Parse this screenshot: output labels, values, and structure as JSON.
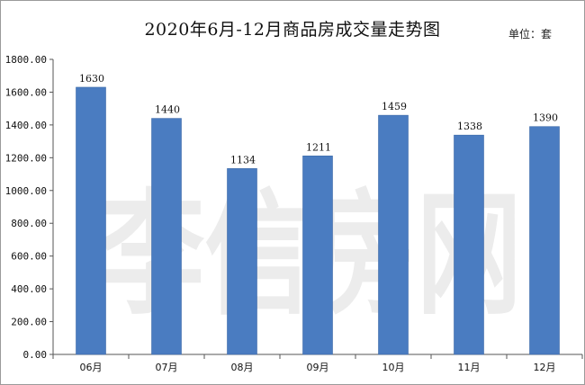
{
  "header": {
    "title": "2020年6月-12月商品房成交量走势图",
    "unit": "单位：套"
  },
  "watermark": "李信房网",
  "colors": {
    "bar": "#4a7cc1",
    "bar_edge": "#3d6aa8",
    "axis": "#555555"
  },
  "chart_data": {
    "type": "bar",
    "title": "2020年6月-12月商品房成交量走势图",
    "xlabel": "",
    "ylabel": "",
    "categories": [
      "06月",
      "07月",
      "08月",
      "09月",
      "10月",
      "11月",
      "12月"
    ],
    "values": [
      1630,
      1440,
      1134,
      1211,
      1459,
      1338,
      1390
    ],
    "ylim": [
      0,
      1800
    ],
    "yticks": [
      "0.00",
      "200.00",
      "400.00",
      "600.00",
      "800.00",
      "1000.00",
      "1200.00",
      "1400.00",
      "1600.00",
      "1800.00"
    ],
    "data_labels": [
      "1630",
      "1440",
      "1134",
      "1211",
      "1459",
      "1338",
      "1390"
    ],
    "grid": false,
    "legend": "none"
  }
}
